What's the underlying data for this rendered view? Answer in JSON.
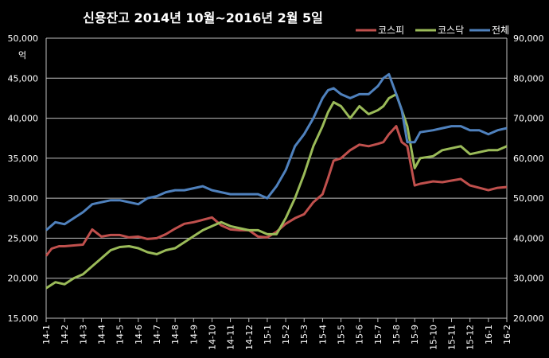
{
  "chart_data": {
    "type": "line",
    "title": "신용잔고 2014년 10월~2016년 2월 5일",
    "ylabel_left": "억",
    "x_ticks": [
      "14-1",
      "14-2",
      "14-3",
      "14-4",
      "14-5",
      "14-6",
      "14-7",
      "14-8",
      "14-9",
      "14-10",
      "14-11",
      "14-12",
      "15-1",
      "15-2",
      "15-3",
      "15-4",
      "15-5",
      "15-6",
      "15-7",
      "15-8",
      "15-9",
      "15-10",
      "15-11",
      "15-12",
      "16-1",
      "16-2"
    ],
    "y_left": {
      "min": 15000,
      "max": 50000,
      "step": 5000,
      "ticks": [
        "15,000",
        "20,000",
        "25,000",
        "30,000",
        "35,000",
        "40,000",
        "45,000",
        "50,000"
      ]
    },
    "y_right": {
      "min": 20000,
      "max": 90000,
      "step": 10000,
      "ticks": [
        "20,000",
        "30,000",
        "40,000",
        "50,000",
        "60,000",
        "70,000",
        "80,000",
        "90,000"
      ]
    },
    "grid": true,
    "legend_position": "top-right",
    "series": [
      {
        "name": "코스피",
        "color": "#c0504d",
        "axis": "left",
        "x": [
          0,
          0.3,
          0.7,
          1,
          1.5,
          2,
          2.5,
          3,
          3.5,
          4,
          4.5,
          5,
          5.5,
          6,
          6.5,
          7,
          7.5,
          8,
          8.5,
          9,
          9.5,
          10,
          10.5,
          11,
          11.5,
          12,
          12.5,
          13,
          13.5,
          14,
          14.5,
          15,
          15.3,
          15.6,
          16,
          16.5,
          17,
          17.5,
          18,
          18.3,
          18.6,
          19,
          19.3,
          19.6,
          20,
          20.3,
          21,
          21.5,
          22,
          22.5,
          23,
          23.5,
          24,
          24.5,
          25
        ],
        "y": [
          22800,
          23700,
          24000,
          24000,
          24100,
          24200,
          26100,
          25200,
          25400,
          25400,
          25100,
          25200,
          24900,
          25000,
          25500,
          26200,
          26800,
          27000,
          27300,
          27600,
          26600,
          26100,
          26000,
          26000,
          25200,
          25100,
          25800,
          26800,
          27500,
          28000,
          29500,
          30500,
          32500,
          34700,
          35000,
          36000,
          36700,
          36500,
          36800,
          37000,
          38000,
          39000,
          37000,
          36500,
          31600,
          31800,
          32100,
          32000,
          32200,
          32400,
          31600,
          31300,
          31000,
          31300,
          31400
        ]
      },
      {
        "name": "코스닥",
        "color": "#9bbb59",
        "axis": "right",
        "x": [
          0,
          0.5,
          1,
          1.5,
          2,
          2.5,
          3,
          3.5,
          4,
          4.5,
          5,
          5.5,
          6,
          6.5,
          7,
          7.5,
          8,
          8.5,
          9,
          9.5,
          10,
          10.5,
          11,
          11.5,
          12,
          12.5,
          13,
          13.5,
          14,
          14.5,
          15,
          15.3,
          15.6,
          16,
          16.5,
          17,
          17.5,
          18,
          18.3,
          18.6,
          19,
          19.3,
          19.6,
          20,
          20.3,
          21,
          21.5,
          22,
          22.5,
          23,
          23.5,
          24,
          24.5,
          25
        ],
        "y": [
          27500,
          29000,
          28500,
          30000,
          31000,
          33000,
          35000,
          37000,
          37800,
          38000,
          37500,
          36500,
          36000,
          37000,
          37500,
          39000,
          40500,
          42000,
          43000,
          44000,
          43000,
          42500,
          42000,
          42000,
          41000,
          41000,
          45000,
          50000,
          56000,
          63000,
          68000,
          71500,
          74000,
          73000,
          70000,
          73000,
          71000,
          72000,
          73000,
          75000,
          76000,
          72000,
          68000,
          57500,
          60000,
          60500,
          62000,
          62500,
          63000,
          61000,
          61500,
          62000,
          62000,
          63000
        ]
      },
      {
        "name": "전체",
        "color": "#4f81bd",
        "axis": "right",
        "x": [
          0,
          0.5,
          1,
          1.5,
          2,
          2.5,
          3,
          3.5,
          4,
          4.5,
          5,
          5.5,
          6,
          6.5,
          7,
          7.5,
          8,
          8.5,
          9,
          9.5,
          10,
          10.5,
          11,
          11.5,
          12,
          12.5,
          13,
          13.5,
          14,
          14.5,
          15,
          15.3,
          15.6,
          16,
          16.5,
          17,
          17.5,
          18,
          18.3,
          18.6,
          19,
          19.3,
          19.6,
          20,
          20.3,
          21,
          21.5,
          22,
          22.5,
          23,
          23.5,
          24,
          24.5,
          25
        ],
        "y": [
          42000,
          44000,
          43500,
          45000,
          46500,
          48500,
          49000,
          49500,
          49500,
          49000,
          48500,
          50000,
          50500,
          51500,
          52000,
          52000,
          52500,
          53000,
          52000,
          51500,
          51000,
          51000,
          51000,
          51000,
          50000,
          53000,
          57000,
          63000,
          66000,
          70000,
          75000,
          77000,
          77500,
          76000,
          75000,
          76000,
          76000,
          78000,
          80000,
          81000,
          76000,
          72000,
          64000,
          64000,
          66500,
          67000,
          67500,
          68000,
          68000,
          67000,
          67000,
          66000,
          67000,
          67500
        ]
      }
    ]
  }
}
